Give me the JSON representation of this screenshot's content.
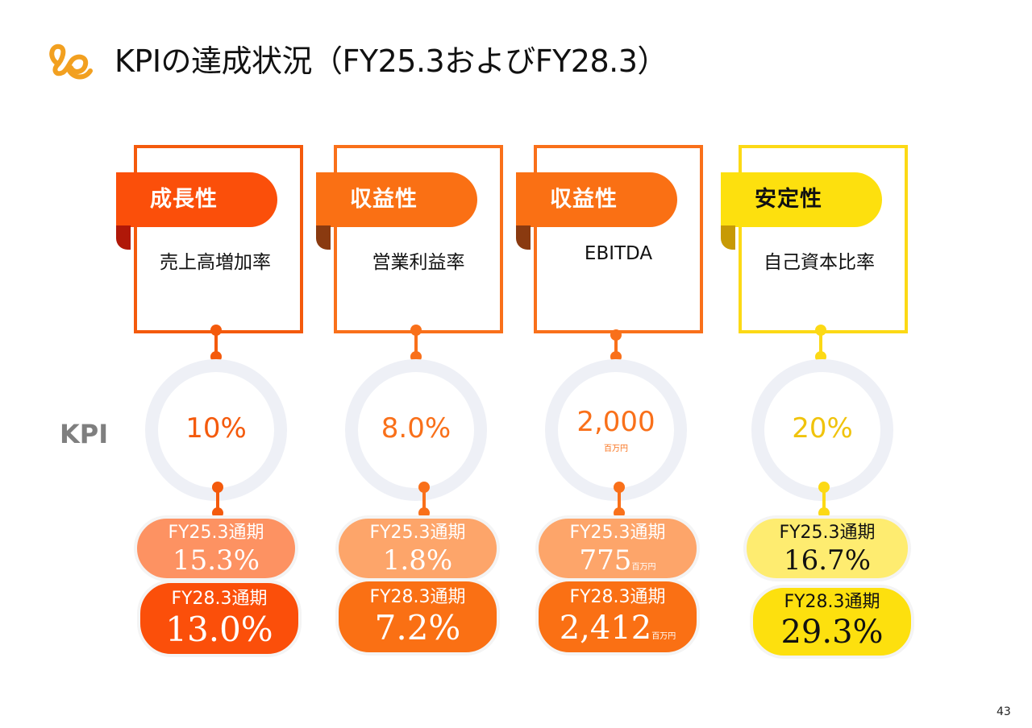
{
  "title": "KPIの達成状況（FY25.3およびFY28.3）",
  "kpi_label": "KPI",
  "page_number": "43",
  "colors": {
    "orange_red": "#f45a0c",
    "orange": "#fa7a14",
    "yellow": "#fcd915",
    "ring_grey": "#eef0f6"
  },
  "columns": [
    {
      "category": "成長性",
      "metric": "売上高増加率",
      "target": "10%",
      "target_unit": "",
      "fy25_label": "FY25.3通期",
      "fy25_value": "15.3%",
      "fy25_unit": "",
      "fy28_label": "FY28.3通期",
      "fy28_value": "13.0%",
      "fy28_unit": ""
    },
    {
      "category": "収益性",
      "metric": "営業利益率",
      "target": "8.0%",
      "target_unit": "",
      "fy25_label": "FY25.3通期",
      "fy25_value": "1.8%",
      "fy25_unit": "",
      "fy28_label": "FY28.3通期",
      "fy28_value": "7.2%",
      "fy28_unit": ""
    },
    {
      "category": "収益性",
      "metric": "EBITDA",
      "target": "2,000",
      "target_unit": "百万円",
      "fy25_label": "FY25.3通期",
      "fy25_value": "775",
      "fy25_unit": "百万円",
      "fy28_label": "FY28.3通期",
      "fy28_value": "2,412",
      "fy28_unit": "百万円"
    },
    {
      "category": "安定性",
      "metric": "自己資本比率",
      "target": "20%",
      "target_unit": "",
      "fy25_label": "FY25.3通期",
      "fy25_value": "16.7%",
      "fy25_unit": "",
      "fy28_label": "FY28.3通期",
      "fy28_value": "29.3%",
      "fy28_unit": ""
    }
  ]
}
